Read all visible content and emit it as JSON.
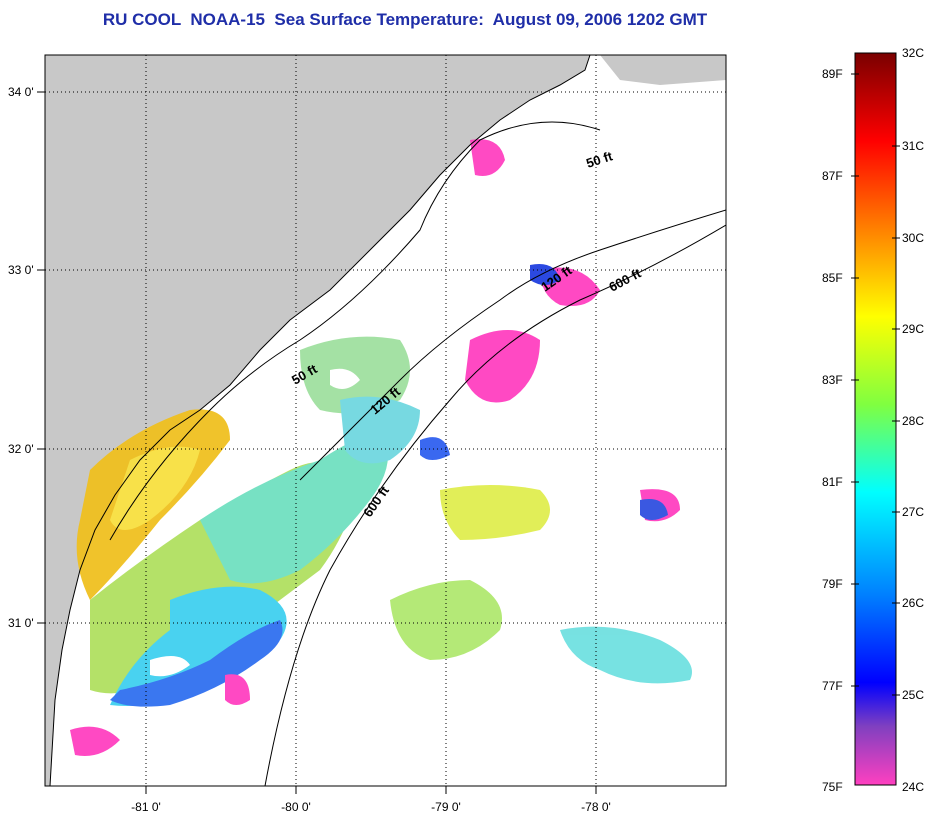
{
  "title": "RU COOL  NOAA-15  Sea Surface Temperature:  August 09, 2006 1202 GMT",
  "map": {
    "lon_ticks": [
      "-81 0'",
      "-80 0'",
      "-79 0'",
      "-78 0'"
    ],
    "lat_ticks": [
      "34 0'",
      "33 0'",
      "32 0'",
      "31 0'"
    ],
    "contour_labels": [
      "50 ft",
      "50 ft",
      "120 ft",
      "120 ft",
      "600 ft",
      "600 ft"
    ],
    "colors": {
      "land": "#c8c8c8",
      "ocean": "#ffffff",
      "contour": "#000000"
    }
  },
  "colorbar": {
    "celsius_labels": [
      "32C",
      "31C",
      "30C",
      "29C",
      "28C",
      "27C",
      "26C",
      "25C",
      "24C"
    ],
    "fahrenheit_labels": [
      "89F",
      "87F",
      "85F",
      "83F",
      "81F",
      "79F",
      "77F",
      "75F"
    ],
    "stops": [
      "#7a0000",
      "#ff0000",
      "#ff8000",
      "#ffff00",
      "#80ff40",
      "#00ffff",
      "#0080ff",
      "#0000ff",
      "#8040c0",
      "#ff40c0"
    ]
  }
}
